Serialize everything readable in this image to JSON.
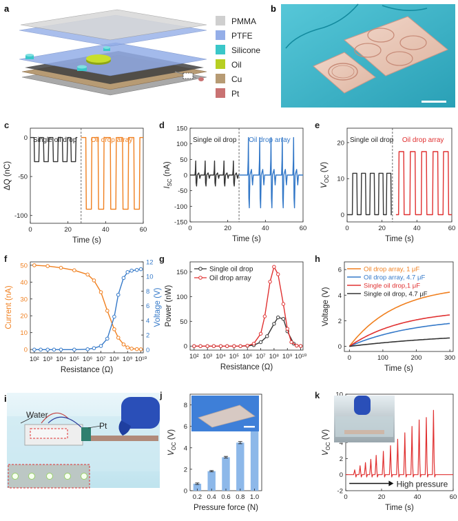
{
  "colors": {
    "orange": "#f07f1e",
    "blue": "#3378c8",
    "red": "#e03030",
    "black": "#333333",
    "bar": "#8db8e9",
    "pmma": "#cfcfcf",
    "ptfe": "#94aee8",
    "silicone": "#3ac7c9",
    "oil": "#b7cf22",
    "cu": "#b79b74",
    "pt": "#c97272",
    "photo_bg": "#43bcd0",
    "photo_bg_dark": "#1f8ea4"
  },
  "panel_a": {
    "legend": [
      {
        "label": "PMMA",
        "color": "#cfcfcf"
      },
      {
        "label": "PTFE",
        "color": "#94aee8"
      },
      {
        "label": "Silicone",
        "color": "#3ac7c9"
      },
      {
        "label": "Oil",
        "color": "#b7cf22"
      },
      {
        "label": "Cu",
        "color": "#b79b74"
      },
      {
        "label": "Pt",
        "color": "#c97272"
      }
    ]
  },
  "panel_i": {
    "labels": [
      "Water",
      "Pt"
    ]
  },
  "chart_data": [
    {
      "id": "c",
      "panel_label": "c",
      "type": "line",
      "xlabel": "Time (s)",
      "ylabel": "ΔQ (nC)",
      "xlim": [
        0,
        60
      ],
      "ylim": [
        -110,
        12
      ],
      "xticks": [
        0,
        20,
        40,
        60
      ],
      "yticks": [
        0,
        -50,
        -100
      ],
      "annotations": [
        "Single oil drop",
        "Oil drop array"
      ],
      "divider_x": 27,
      "series": [
        {
          "segment": "Single oil drop",
          "color": "#333333",
          "shape": "pulse",
          "t0": 0,
          "t1": 25,
          "starts": [
            2,
            7,
            12,
            17,
            21.5
          ],
          "width": 2.8,
          "base": 0,
          "peak": -31
        },
        {
          "segment": "Oil drop array",
          "color": "#f07f1e",
          "shape": "pulse",
          "t0": 27,
          "t1": 60,
          "starts": [
            29.5,
            36,
            42.5,
            49,
            55
          ],
          "width": 3.2,
          "base": 0,
          "peak": -92
        }
      ]
    },
    {
      "id": "d",
      "panel_label": "d",
      "type": "line",
      "xlabel": "Time (s)",
      "ylabel": "I_SC (nA)",
      "xlim": [
        0,
        60
      ],
      "ylim": [
        -150,
        150
      ],
      "xticks": [
        0,
        20,
        40,
        60
      ],
      "yticks": [
        150,
        100,
        50,
        0,
        -50,
        -100,
        -150
      ],
      "annotations": [
        "Single oil drop",
        "Oil drop array"
      ],
      "divider_x": 26,
      "series": [
        {
          "segment": "Single oil drop",
          "color": "#333333",
          "shape": "spike",
          "t0": 0,
          "t1": 26,
          "times": [
            3,
            8,
            13,
            18,
            23
          ],
          "pos": 45,
          "neg": -35
        },
        {
          "segment": "Oil drop array",
          "color": "#3378c8",
          "shape": "spike",
          "t0": 26,
          "t1": 60,
          "times": [
            31,
            37,
            43,
            49,
            55
          ],
          "pos": 120,
          "neg": -105
        }
      ]
    },
    {
      "id": "e",
      "panel_label": "e",
      "type": "line",
      "xlabel": "Time (s)",
      "ylabel": "V_OC (V)",
      "xlim": [
        0,
        60
      ],
      "ylim": [
        -2,
        24
      ],
      "xticks": [
        0,
        20,
        40,
        60
      ],
      "yticks": [
        0,
        10,
        20
      ],
      "annotations": [
        "Single oil drop",
        "Oil drop array"
      ],
      "divider_x": 26,
      "series": [
        {
          "segment": "Single oil drop",
          "color": "#333333",
          "shape": "pulse",
          "t0": 0,
          "t1": 25,
          "starts": [
            3,
            8,
            13,
            18,
            22.5
          ],
          "width": 2.8,
          "base": 0,
          "peak": 11.5
        },
        {
          "segment": "Oil drop array",
          "color": "#e03030",
          "shape": "pulse",
          "t0": 28,
          "t1": 60,
          "starts": [
            29.5,
            36,
            42.5,
            49,
            55
          ],
          "width": 3.2,
          "base": 0,
          "peak": 17.5
        }
      ]
    },
    {
      "id": "f",
      "panel_label": "f",
      "type": "line",
      "xlabel": "Resistance (Ω)",
      "ylabel": "Current (nA)",
      "y2label": "Voltage (V)",
      "xscale": "log",
      "xlim": [
        50,
        15000000000
      ],
      "ylim": [
        -2,
        52
      ],
      "y2lim": [
        -0.44,
        12
      ],
      "xticks": [
        "10²",
        "10³",
        "10⁴",
        "10⁵",
        "10⁶",
        "10⁷",
        "10⁸",
        "10⁹",
        "10¹⁰"
      ],
      "yticks": [
        0,
        10,
        20,
        30,
        40,
        50
      ],
      "y2ticks": [
        0,
        2,
        4,
        6,
        8,
        10,
        12
      ],
      "series": [
        {
          "name": "Current",
          "axis": "left",
          "color": "#f07f1e",
          "x": [
            100,
            1000,
            10000,
            100000,
            1000000,
            3000000,
            10000000,
            30000000,
            100000000,
            200000000,
            500000000,
            1000000000,
            2000000000,
            5000000000,
            10000000000
          ],
          "y": [
            50,
            49.5,
            48.5,
            47,
            44.5,
            41,
            34,
            23,
            12,
            7,
            3,
            1.2,
            0.5,
            0.2,
            0.1
          ]
        },
        {
          "name": "Voltage",
          "axis": "right",
          "color": "#3378c8",
          "x": [
            100,
            300,
            1000,
            3000,
            10000,
            100000,
            1000000,
            3000000,
            10000000,
            30000000,
            100000000,
            200000000,
            500000000,
            1000000000,
            2000000000,
            5000000000,
            10000000000
          ],
          "y": [
            0,
            0,
            0,
            0,
            0,
            0,
            0.05,
            0.2,
            0.5,
            1.5,
            4.5,
            7.5,
            9.8,
            10.6,
            10.8,
            10.9,
            11
          ]
        }
      ]
    },
    {
      "id": "g",
      "panel_label": "g",
      "type": "line",
      "xlabel": "Resistance (Ω)",
      "ylabel": "Power (nW)",
      "xscale": "log",
      "xlim": [
        50,
        15000000000
      ],
      "ylim": [
        -8,
        170
      ],
      "xticks": [
        "10²",
        "10³",
        "10⁴",
        "10⁵",
        "10⁶",
        "10⁷",
        "10⁸",
        "10⁹",
        "10¹⁰"
      ],
      "yticks": [
        0,
        50,
        100,
        150
      ],
      "legend": [
        "Single oil drop",
        "Oil drop array"
      ],
      "series": [
        {
          "name": "Single oil drop",
          "color": "#333333",
          "x": [
            100,
            300,
            1000,
            3000,
            10000,
            30000,
            100000,
            300000,
            1000000,
            3000000,
            10000000,
            30000000,
            100000000,
            200000000,
            500000000,
            1000000000,
            3000000000,
            5000000000,
            10000000000
          ],
          "y": [
            0,
            0,
            0,
            0,
            0,
            0,
            0,
            0,
            0.5,
            2,
            8,
            20,
            45,
            58,
            55,
            30,
            5,
            1,
            0.3
          ]
        },
        {
          "name": "Oil drop array",
          "color": "#e03030",
          "x": [
            100,
            300,
            1000,
            3000,
            10000,
            30000,
            100000,
            300000,
            1000000,
            3000000,
            10000000,
            20000000,
            50000000,
            100000000,
            200000000,
            500000000,
            1000000000,
            2000000000,
            5000000000,
            10000000000
          ],
          "y": [
            0,
            0,
            0,
            0,
            0,
            0,
            0,
            0,
            1,
            5,
            25,
            60,
            130,
            160,
            145,
            85,
            35,
            8,
            1,
            0.3
          ]
        }
      ]
    },
    {
      "id": "h",
      "panel_label": "h",
      "type": "line",
      "xlabel": "Time (s)",
      "ylabel": "Voltage (V)",
      "xlim": [
        -15,
        310
      ],
      "ylim": [
        -0.4,
        6.6
      ],
      "xticks": [
        0,
        100,
        200,
        300
      ],
      "yticks": [
        0,
        2,
        4,
        6
      ],
      "legend": [
        "Oil drop array, 1 μF",
        "Oil drop array, 4.7 μF",
        "Single oil drop,1 μF",
        "Single oil drop, 4.7 μF"
      ],
      "series": [
        {
          "name": "Oil drop array, 1 μF",
          "color": "#f07f1e",
          "shape": "exp",
          "vmax": 4.8,
          "tau": 140
        },
        {
          "name": "Oil drop array, 4.7 μF",
          "color": "#3378c8",
          "shape": "exp",
          "vmax": 2.3,
          "tau": 200
        },
        {
          "name": "Single oil drop,1 μF",
          "color": "#e03030",
          "shape": "exp",
          "vmax": 2.9,
          "tau": 160
        },
        {
          "name": "Single oil drop, 4.7 μF",
          "color": "#333333",
          "shape": "exp",
          "vmax": 1.2,
          "tau": 380
        }
      ]
    },
    {
      "id": "j",
      "panel_label": "j",
      "type": "bar",
      "xlabel": "Pressure force (N)",
      "ylabel": "V_OC (V)",
      "categories": [
        "0.2",
        "0.4",
        "0.6",
        "0.8",
        "1.0"
      ],
      "values": [
        0.65,
        1.82,
        3.12,
        4.48,
        7.75
      ],
      "errors": [
        0.07,
        0.06,
        0.08,
        0.1,
        0.15
      ],
      "ylim": [
        0,
        9
      ],
      "yticks": [
        0,
        2,
        4,
        6,
        8
      ]
    },
    {
      "id": "k",
      "panel_label": "k",
      "type": "line",
      "xlabel": "Time (s)",
      "ylabel": "V_OC (V)",
      "xlim": [
        0,
        60
      ],
      "ylim": [
        -2,
        10
      ],
      "xticks": [
        0,
        20,
        40,
        60
      ],
      "yticks": [
        -2,
        0,
        2,
        4,
        6,
        8,
        10
      ],
      "annotation": "High pressure",
      "series": [
        {
          "color": "#e03030",
          "shape": "spike",
          "times": [
            5,
            8,
            11,
            14,
            17,
            21,
            25,
            29,
            33,
            37,
            41,
            45,
            49
          ],
          "peaks": [
            0.6,
            1.1,
            1.5,
            1.9,
            2.4,
            2.9,
            3.6,
            4.4,
            5.2,
            6.0,
            6.8,
            7.1,
            8.0
          ]
        }
      ]
    }
  ]
}
